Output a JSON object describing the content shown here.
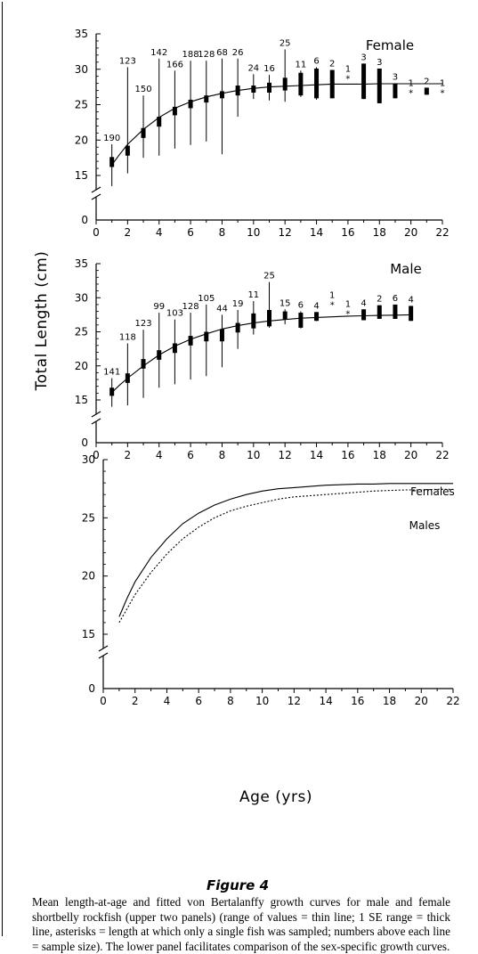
{
  "figure": {
    "label": "Figure 4",
    "caption": "Mean length-at-age and fitted von Bertalanffy growth curves for male and female shortbelly rockfish (upper two panels) (range of values = thin line; 1 SE range = thick line, asterisks = length at which only a single fish was sampled; numbers above each line = sample size). The lower panel facilitates comparison of the sex-specific growth curves.",
    "y_axis_title": "Total Length (cm)",
    "x_axis_title": "Age (yrs)"
  },
  "chart_data": [
    {
      "type": "scatter",
      "title": "Female",
      "xlim": [
        0,
        22
      ],
      "ylim": [
        0,
        35
      ],
      "y_axis_break": [
        0,
        15
      ],
      "x_ticks": [
        "0",
        "2",
        "4",
        "6",
        "8",
        "10",
        "12",
        "14",
        "16",
        "18",
        "20",
        "22"
      ],
      "y_ticks": [
        "0",
        "15",
        "20",
        "25",
        "30",
        "35"
      ],
      "series": [
        {
          "points": [
            {
              "age": 1,
              "n": "190",
              "mean": 16.9,
              "se_low": 16.2,
              "se_high": 17.6,
              "min": 13.5,
              "max": 19.4
            },
            {
              "age": 2,
              "n": "123",
              "mean": 18.5,
              "se_low": 17.8,
              "se_high": 19.2,
              "min": 15.3,
              "max": 30.3
            },
            {
              "age": 3,
              "n": "150",
              "mean": 21.0,
              "se_low": 20.3,
              "se_high": 21.7,
              "min": 17.5,
              "max": 26.3
            },
            {
              "age": 4,
              "n": "142",
              "mean": 22.6,
              "se_low": 21.9,
              "se_high": 23.3,
              "min": 17.8,
              "max": 31.5
            },
            {
              "age": 5,
              "n": "166",
              "mean": 24.1,
              "se_low": 23.5,
              "se_high": 24.7,
              "min": 18.8,
              "max": 29.8
            },
            {
              "age": 6,
              "n": "188",
              "mean": 25.1,
              "se_low": 24.5,
              "se_high": 25.7,
              "min": 19.3,
              "max": 31.2
            },
            {
              "age": 7,
              "n": "128",
              "mean": 25.8,
              "se_low": 25.3,
              "se_high": 26.3,
              "min": 19.8,
              "max": 31.2
            },
            {
              "age": 8,
              "n": "68",
              "mean": 26.4,
              "se_low": 25.9,
              "se_high": 26.9,
              "min": 18.0,
              "max": 31.5
            },
            {
              "age": 9,
              "n": "26",
              "mean": 27.0,
              "se_low": 26.3,
              "se_high": 27.7,
              "min": 23.3,
              "max": 31.5
            },
            {
              "age": 10,
              "n": "24",
              "mean": 27.2,
              "se_low": 26.7,
              "se_high": 27.7,
              "min": 25.8,
              "max": 29.3
            },
            {
              "age": 11,
              "n": "16",
              "mean": 27.4,
              "se_low": 26.7,
              "se_high": 28.1,
              "min": 25.6,
              "max": 29.2
            },
            {
              "age": 12,
              "n": "25",
              "mean": 27.9,
              "se_low": 27.0,
              "se_high": 28.8,
              "min": 25.4,
              "max": 32.8
            },
            {
              "age": 13,
              "n": "11",
              "mean": 27.7,
              "se_low": 26.3,
              "se_high": 29.5,
              "min": 26.1,
              "max": 29.8
            },
            {
              "age": 14,
              "n": "6",
              "mean": 28.0,
              "se_low": 25.9,
              "se_high": 30.1,
              "min": 25.7,
              "max": 30.3
            },
            {
              "age": 15,
              "n": "2",
              "mean": 28.0,
              "se_low": 25.9,
              "se_high": 29.9,
              "min": 25.9,
              "max": 29.9
            },
            {
              "age": 16,
              "n": "1",
              "mean": 28.9,
              "single": true
            },
            {
              "age": 17,
              "n": "3",
              "mean": 28.0,
              "se_low": 25.8,
              "se_high": 30.8,
              "min": 25.8,
              "max": 30.8
            },
            {
              "age": 18,
              "n": "3",
              "mean": 27.7,
              "se_low": 25.2,
              "se_high": 30.1,
              "min": 25.2,
              "max": 30.1
            },
            {
              "age": 19,
              "n": "3",
              "mean": 27.0,
              "se_low": 25.9,
              "se_high": 28.0,
              "min": 25.9,
              "max": 28.0
            },
            {
              "age": 20,
              "n": "1",
              "mean": 26.9,
              "single": true
            },
            {
              "age": 21,
              "n": "2",
              "mean": 26.9,
              "se_low": 26.4,
              "se_high": 27.4,
              "min": 26.4,
              "max": 27.4
            },
            {
              "age": 22,
              "n": "1",
              "mean": 26.9,
              "single": true
            }
          ]
        }
      ],
      "fitted_curve": {
        "x": [
          1,
          1.5,
          2,
          3,
          4,
          5,
          6,
          7,
          8,
          9,
          10,
          11,
          12,
          13,
          14,
          15,
          16,
          17,
          18,
          19,
          20,
          21,
          22
        ],
        "y": [
          16.5,
          18.0,
          19.4,
          21.5,
          23.2,
          24.5,
          25.4,
          26.1,
          26.6,
          27.0,
          27.3,
          27.5,
          27.6,
          27.7,
          27.8,
          27.9,
          27.9,
          27.9,
          27.95,
          27.95,
          27.95,
          27.95,
          27.95
        ]
      }
    },
    {
      "type": "scatter",
      "title": "Male",
      "xlim": [
        0,
        22
      ],
      "ylim": [
        0,
        35
      ],
      "y_axis_break": [
        0,
        15
      ],
      "x_ticks": [
        "0",
        "2",
        "4",
        "6",
        "8",
        "10",
        "12",
        "14",
        "16",
        "18",
        "20",
        "22"
      ],
      "y_ticks": [
        "0",
        "15",
        "20",
        "25",
        "30",
        "35"
      ],
      "series": [
        {
          "points": [
            {
              "age": 1,
              "n": "141",
              "mean": 16.2,
              "se_low": 15.6,
              "se_high": 16.8,
              "min": 14.0,
              "max": 18.2
            },
            {
              "age": 2,
              "n": "118",
              "mean": 18.2,
              "se_low": 17.5,
              "se_high": 18.9,
              "min": 14.2,
              "max": 23.3
            },
            {
              "age": 3,
              "n": "123",
              "mean": 20.3,
              "se_low": 19.6,
              "se_high": 21.0,
              "min": 15.3,
              "max": 25.3
            },
            {
              "age": 4,
              "n": "99",
              "mean": 21.6,
              "se_low": 20.9,
              "se_high": 22.3,
              "min": 16.8,
              "max": 27.8
            },
            {
              "age": 5,
              "n": "103",
              "mean": 22.6,
              "se_low": 21.9,
              "se_high": 23.3,
              "min": 17.3,
              "max": 26.8
            },
            {
              "age": 6,
              "n": "128",
              "mean": 23.7,
              "se_low": 23.0,
              "se_high": 24.4,
              "min": 18.0,
              "max": 27.8
            },
            {
              "age": 7,
              "n": "105",
              "mean": 24.3,
              "se_low": 23.6,
              "se_high": 25.0,
              "min": 18.5,
              "max": 29.0
            },
            {
              "age": 8,
              "n": "44",
              "mean": 24.5,
              "se_low": 23.6,
              "se_high": 25.4,
              "min": 19.8,
              "max": 27.5
            },
            {
              "age": 9,
              "n": "19",
              "mean": 25.6,
              "se_low": 24.9,
              "se_high": 26.3,
              "min": 22.5,
              "max": 28.2
            },
            {
              "age": 10,
              "n": "11",
              "mean": 26.6,
              "se_low": 25.5,
              "se_high": 27.7,
              "min": 24.6,
              "max": 29.5
            },
            {
              "age": 11,
              "n": "25",
              "mean": 27.0,
              "se_low": 25.8,
              "se_high": 28.2,
              "min": 25.6,
              "max": 32.3
            },
            {
              "age": 12,
              "n": "15",
              "mean": 27.4,
              "se_low": 26.8,
              "se_high": 28.0,
              "min": 26.1,
              "max": 28.3
            },
            {
              "age": 13,
              "n": "6",
              "mean": 26.9,
              "se_low": 25.6,
              "se_high": 27.8,
              "min": 25.5,
              "max": 28.0
            },
            {
              "age": 14,
              "n": "4",
              "mean": 27.2,
              "se_low": 26.6,
              "se_high": 27.9,
              "min": 26.6,
              "max": 27.9
            },
            {
              "age": 15,
              "n": "1",
              "mean": 29.2,
              "single": true
            },
            {
              "age": 16,
              "n": "1",
              "mean": 27.9,
              "single": true
            },
            {
              "age": 17,
              "n": "4",
              "mean": 27.5,
              "se_low": 26.7,
              "se_high": 28.3,
              "min": 26.7,
              "max": 28.3
            },
            {
              "age": 18,
              "n": "2",
              "mean": 27.9,
              "se_low": 26.9,
              "se_high": 28.9,
              "min": 26.9,
              "max": 28.9
            },
            {
              "age": 19,
              "n": "6",
              "mean": 27.9,
              "se_low": 26.9,
              "se_high": 29.0,
              "min": 26.9,
              "max": 29.0
            },
            {
              "age": 20,
              "n": "4",
              "mean": 27.8,
              "se_low": 26.6,
              "se_high": 28.8,
              "min": 26.6,
              "max": 28.8
            }
          ]
        }
      ],
      "fitted_curve": {
        "x": [
          1,
          1.5,
          2,
          3,
          4,
          5,
          6,
          7,
          8,
          9,
          10,
          11,
          12,
          13,
          14,
          15,
          16,
          17,
          18,
          19,
          20
        ],
        "y": [
          16.1,
          17.2,
          18.2,
          20.0,
          21.6,
          22.9,
          23.9,
          24.7,
          25.4,
          25.9,
          26.3,
          26.6,
          26.8,
          27.0,
          27.1,
          27.2,
          27.3,
          27.35,
          27.4,
          27.45,
          27.5
        ]
      }
    },
    {
      "type": "line",
      "xlim": [
        0,
        22
      ],
      "ylim": [
        0,
        30
      ],
      "y_axis_break": [
        0,
        15
      ],
      "x_ticks": [
        "0",
        "2",
        "4",
        "6",
        "8",
        "10",
        "12",
        "14",
        "16",
        "18",
        "20",
        "22"
      ],
      "y_ticks": [
        "0",
        "15",
        "20",
        "25",
        "30"
      ],
      "x": [
        1,
        1.5,
        2,
        3,
        4,
        5,
        6,
        7,
        8,
        9,
        10,
        11,
        12,
        13,
        14,
        15,
        16,
        17,
        18,
        19,
        20,
        21,
        22
      ],
      "series": [
        {
          "name": "Females",
          "style": "solid",
          "values": [
            16.5,
            18.1,
            19.5,
            21.6,
            23.2,
            24.5,
            25.4,
            26.1,
            26.6,
            27.0,
            27.3,
            27.5,
            27.6,
            27.7,
            27.8,
            27.85,
            27.9,
            27.9,
            27.95,
            27.95,
            27.95,
            27.95,
            27.95
          ]
        },
        {
          "name": "Males",
          "style": "dotted",
          "values": [
            16.0,
            17.2,
            18.4,
            20.3,
            21.9,
            23.2,
            24.2,
            25.0,
            25.6,
            26.0,
            26.3,
            26.6,
            26.8,
            26.9,
            27.0,
            27.1,
            27.2,
            27.3,
            27.35,
            27.4,
            27.4,
            27.45,
            27.45
          ]
        }
      ]
    }
  ]
}
